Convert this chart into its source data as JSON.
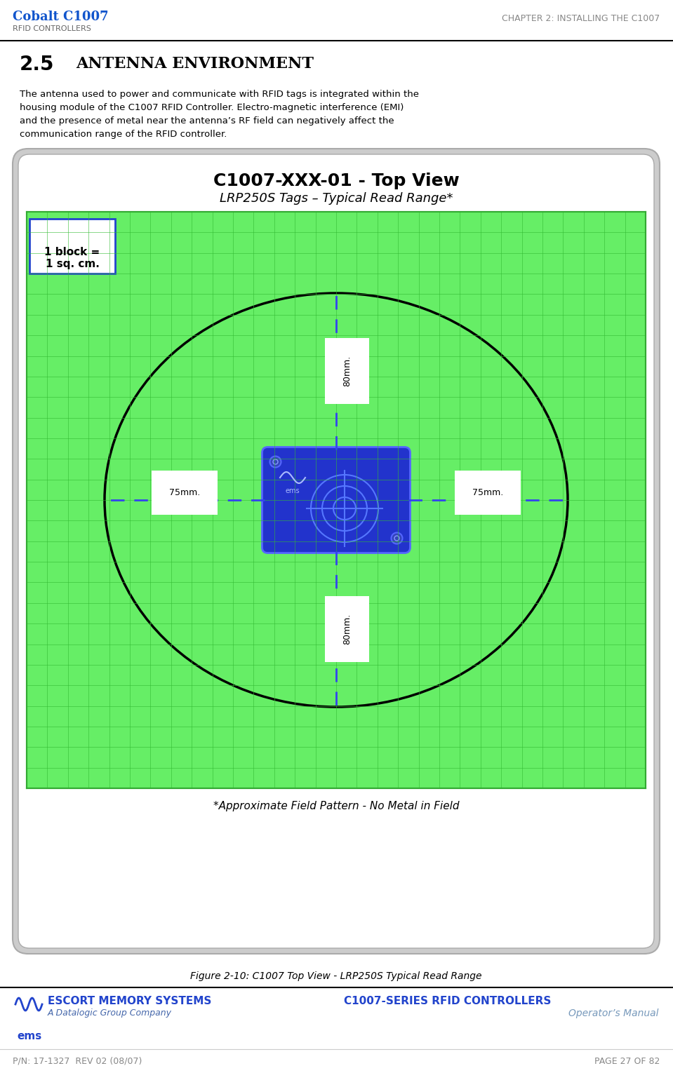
{
  "page_bg": "#ffffff",
  "header_logo_text1": "Cobalt C1007",
  "header_logo_text2": "RFID CONTROLLERS",
  "header_chapter": "CHAPTER 2: INSTALLING THE C1007",
  "section_number": "2.5",
  "section_title": "Antenna Environment",
  "body_text": "The antenna used to power and communicate with RFID tags is integrated within the\nhousing module of the C1007 RFID Controller. Electro-magnetic interference (EMI)\nand the presence of metal near the antenna’s RF field can negatively affect the\ncommunication range of the RFID controller.",
  "diagram_title1": "C1007-XXX-01 - Top View",
  "diagram_title2": "LRP250S Tags – Typical Read Range*",
  "grid_nx": 30,
  "grid_ny": 28,
  "label_80mm_top": "80mm.",
  "label_80mm_bottom": "80mm.",
  "label_75mm_left": "75mm.",
  "label_75mm_right": "75mm.",
  "block_label": "1 block =\n1 sq. cm.",
  "footnote": "*Approximate Field Pattern - No Metal in Field",
  "figure_caption": "Figure 2-10: C1007 Top View - LRP250S Typical Read Range",
  "footer_logo_company": "ESCORT MEMORY SYSTEMS",
  "footer_logo_sub": "A Datalogic Group Company",
  "footer_product": "C1007-SERIES RFID CONTROLLERS",
  "footer_manual": "Operator’s Manual",
  "footer_pn": "P/N: 17-1327  REV 02 (08/07)",
  "footer_page": "PAGE 27 OF 82"
}
